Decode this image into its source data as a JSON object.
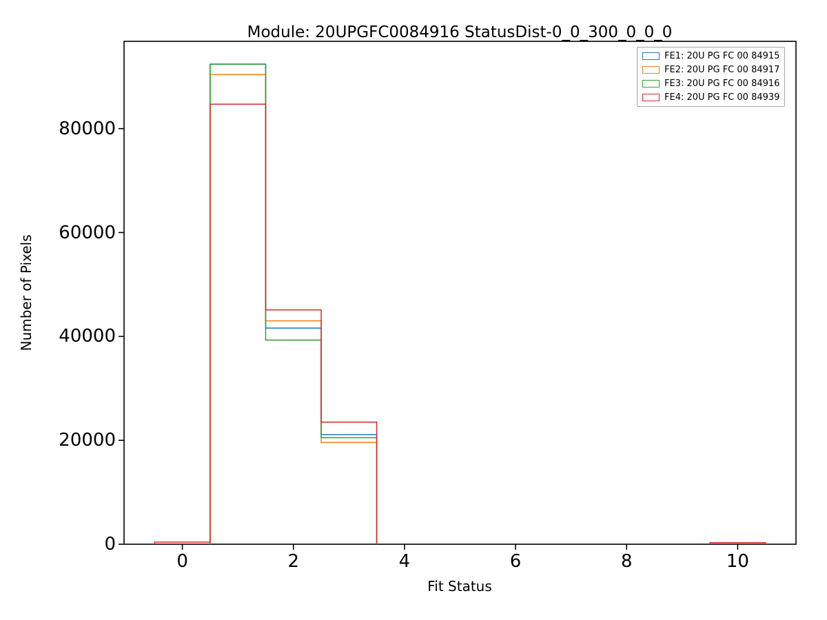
{
  "chart_data": {
    "type": "step-histogram",
    "title": "Module: 20UPGFC0084916 StatusDist-0_0_300_0_0_0",
    "xlabel": "Fit Status",
    "ylabel": "Number of Pixels",
    "xlim": [
      -1.05,
      11.05
    ],
    "ylim": [
      0,
      96800
    ],
    "xticks": [
      0,
      2,
      4,
      6,
      8,
      10
    ],
    "yticks": [
      0,
      20000,
      40000,
      60000,
      80000
    ],
    "bin_edges": [
      -0.5,
      0.5,
      1.5,
      2.5,
      3.5,
      4.5,
      5.5,
      6.5,
      7.5,
      8.5,
      9.5,
      10.5
    ],
    "grid": false,
    "legend_position": "upper right",
    "axis_color": "#000000",
    "series": [
      {
        "label": "FE1: 20U PG FC 00 84915",
        "color": "#1f77b4",
        "values": [
          0,
          92400,
          41600,
          21100,
          0,
          0,
          0,
          0,
          0,
          0,
          0
        ]
      },
      {
        "label": "FE2: 20U PG FC 00 84917",
        "color": "#ff7f0e",
        "values": [
          0,
          90400,
          43000,
          19600,
          0,
          0,
          0,
          0,
          0,
          0,
          0
        ]
      },
      {
        "label": "FE3: 20U PG FC 00 84916",
        "color": "#2ca02c",
        "values": [
          0,
          92400,
          39300,
          20500,
          0,
          0,
          0,
          0,
          0,
          0,
          0
        ]
      },
      {
        "label": "FE4: 20U PG FC 00 84939",
        "color": "#d62728",
        "values": [
          400,
          84700,
          45100,
          23500,
          0,
          0,
          0,
          0,
          0,
          0,
          300
        ]
      }
    ]
  }
}
